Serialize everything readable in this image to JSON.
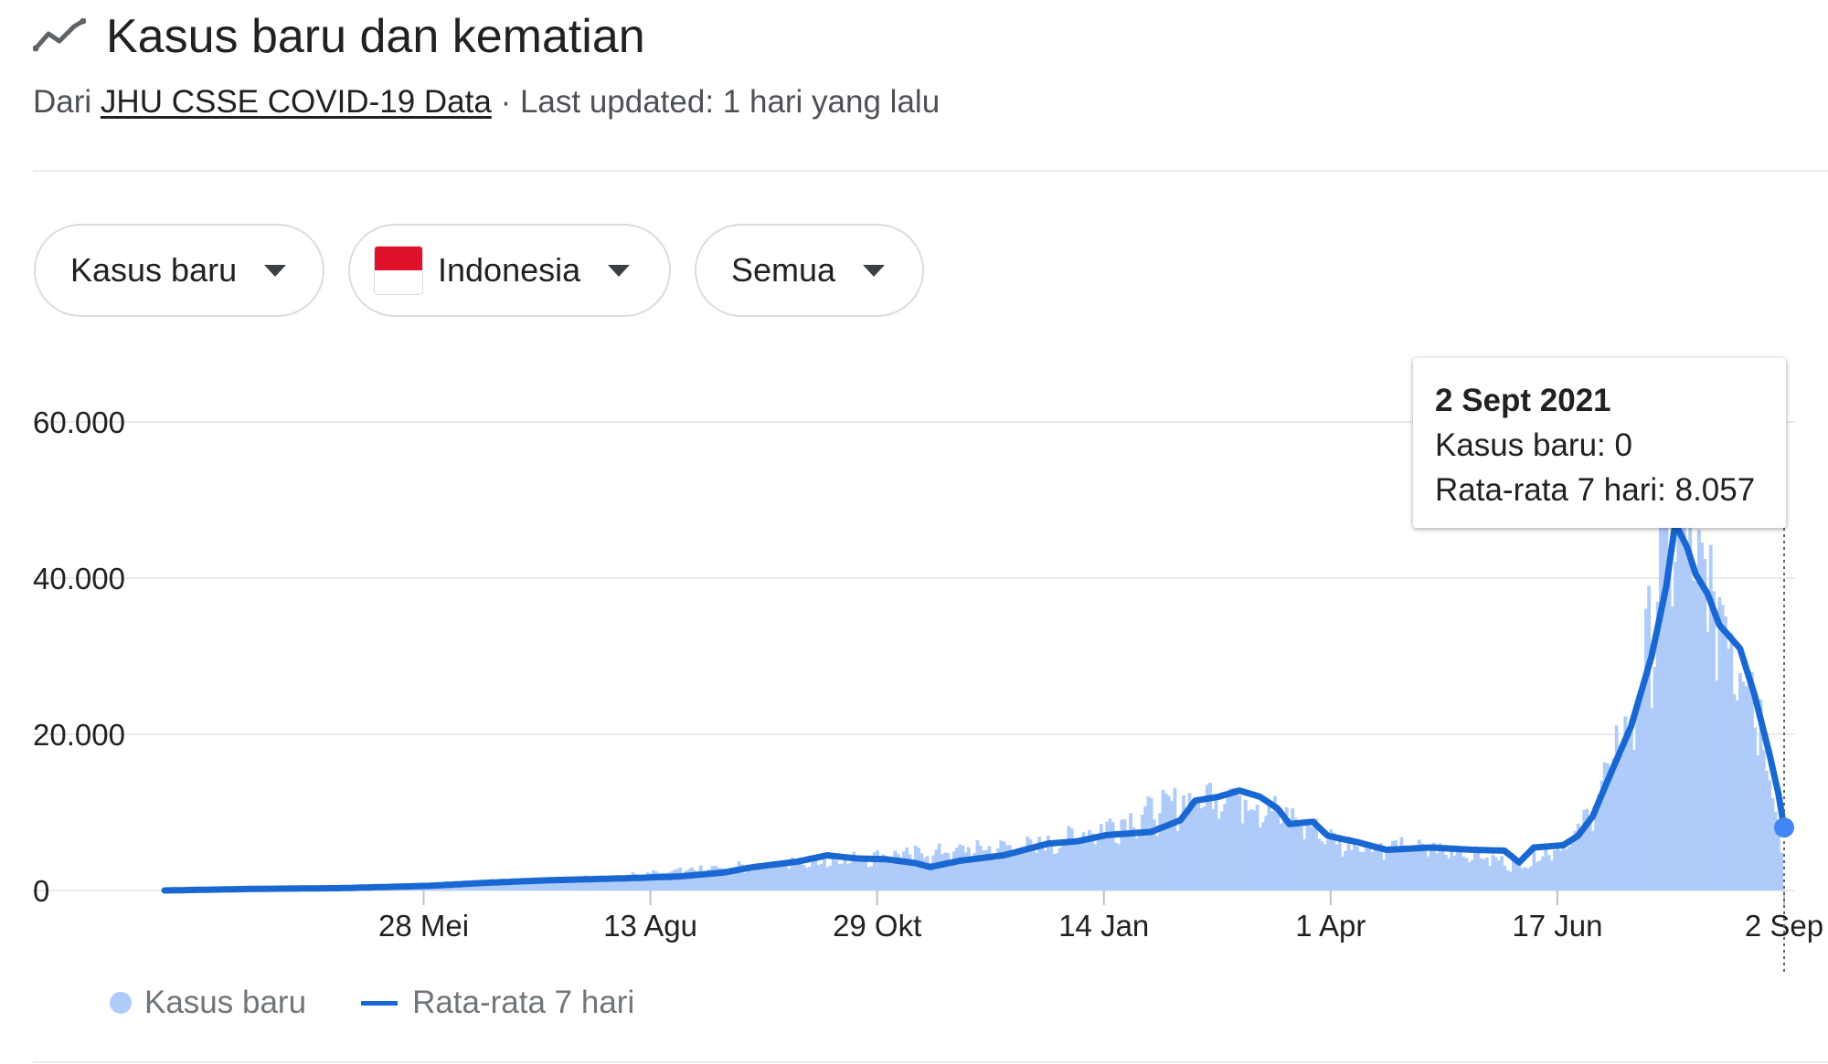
{
  "header": {
    "title": "Kasus baru dan kematian",
    "source_prefix": "Dari",
    "source_link": "JHU CSSE COVID-19 Data",
    "updated": "· Last updated: 1 hari yang lalu"
  },
  "filters": {
    "metric": "Kasus baru",
    "country": "Indonesia",
    "range": "Semua"
  },
  "tooltip": {
    "date": "2 Sept 2021",
    "line1": "Kasus baru: 0",
    "line2": "Rata-rata 7 hari: 8.057"
  },
  "legend": {
    "bars": "Kasus baru",
    "line": "Rata-rata 7 hari"
  },
  "colors": {
    "bars": "#aecbfa",
    "line": "#1967d2",
    "grid": "#e8eaed",
    "icon": "#5f6368"
  },
  "chart_data": {
    "type": "bar",
    "y_ticks": [
      "60.000",
      "40.000",
      "20.000",
      "0"
    ],
    "y_tick_values": [
      60000,
      40000,
      20000,
      0
    ],
    "ylim": [
      0,
      60000
    ],
    "x_ticks": [
      "28 Mei",
      "13 Agu",
      "29 Okt",
      "14 Jan",
      "1 Apr",
      "17 Jun",
      "2 Sep"
    ],
    "x_tick_days": [
      88,
      165,
      242,
      319,
      396,
      473,
      550
    ],
    "x_range_days": [
      0,
      550
    ],
    "day0_date": "2020-03-01",
    "series": [
      {
        "name": "Rata-rata 7 hari",
        "type": "line",
        "points": [
          [
            0,
            0
          ],
          [
            30,
            200
          ],
          [
            60,
            300
          ],
          [
            90,
            600
          ],
          [
            110,
            1000
          ],
          [
            130,
            1300
          ],
          [
            160,
            1600
          ],
          [
            175,
            1800
          ],
          [
            190,
            2300
          ],
          [
            200,
            3000
          ],
          [
            215,
            3700
          ],
          [
            225,
            4500
          ],
          [
            235,
            4100
          ],
          [
            245,
            4000
          ],
          [
            255,
            3500
          ],
          [
            260,
            3000
          ],
          [
            270,
            3800
          ],
          [
            285,
            4500
          ],
          [
            300,
            6000
          ],
          [
            310,
            6300
          ],
          [
            320,
            7100
          ],
          [
            335,
            7500
          ],
          [
            345,
            9000
          ],
          [
            350,
            11500
          ],
          [
            358,
            12000
          ],
          [
            365,
            12800
          ],
          [
            372,
            12000
          ],
          [
            378,
            10500
          ],
          [
            382,
            8500
          ],
          [
            390,
            8800
          ],
          [
            395,
            7000
          ],
          [
            405,
            6200
          ],
          [
            415,
            5200
          ],
          [
            430,
            5500
          ],
          [
            445,
            5200
          ],
          [
            455,
            5100
          ],
          [
            460,
            3600
          ],
          [
            465,
            5500
          ],
          [
            475,
            5800
          ],
          [
            480,
            7000
          ],
          [
            485,
            9500
          ],
          [
            490,
            14000
          ],
          [
            498,
            21000
          ],
          [
            505,
            30000
          ],
          [
            510,
            39000
          ],
          [
            513,
            47000
          ],
          [
            517,
            44000
          ],
          [
            520,
            40500
          ],
          [
            524,
            38000
          ],
          [
            528,
            34000
          ],
          [
            535,
            31000
          ],
          [
            540,
            25000
          ],
          [
            545,
            17500
          ],
          [
            548,
            12500
          ],
          [
            550,
            8057
          ]
        ]
      },
      {
        "name": "Kasus baru",
        "type": "bar",
        "note_points": [
          [
            0,
            0
          ],
          [
            60,
            400
          ],
          [
            150,
            1800
          ],
          [
            230,
            4300
          ],
          [
            300,
            6300
          ],
          [
            350,
            12500
          ],
          [
            360,
            13800
          ],
          [
            375,
            11500
          ],
          [
            400,
            6500
          ],
          [
            440,
            5400
          ],
          [
            460,
            3400
          ],
          [
            480,
            7500
          ],
          [
            500,
            25000
          ],
          [
            510,
            48000
          ],
          [
            516,
            50000
          ],
          [
            520,
            44000
          ],
          [
            530,
            38000
          ],
          [
            540,
            28000
          ],
          [
            548,
            10000
          ],
          [
            550,
            0
          ]
        ]
      }
    ]
  }
}
